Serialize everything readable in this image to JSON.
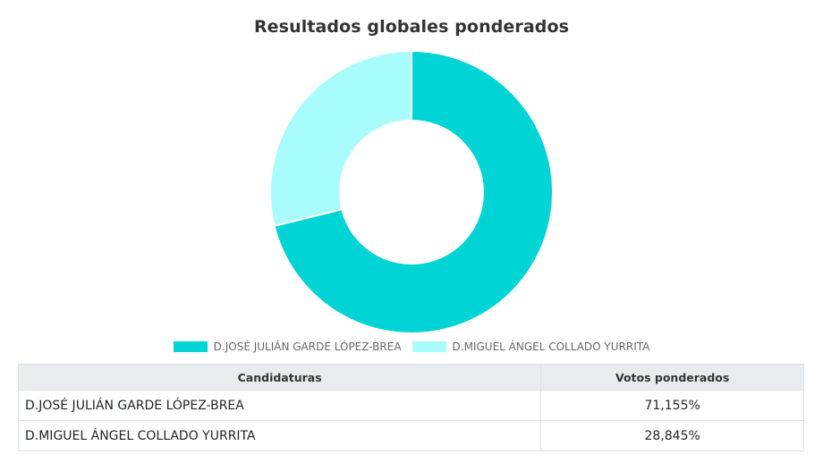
{
  "chart_data": {
    "type": "pie",
    "title": "Resultados globales ponderados",
    "categories": [
      "D.JOSÉ JULIÁN GARDE LÓPEZ-BREA",
      "D.MIGUEL ÁNGEL COLLADO YURRITA"
    ],
    "values": [
      71.155,
      28.845
    ],
    "colors": [
      "#00d4d4",
      "#a8fcfc"
    ],
    "donut": true,
    "legend_position": "bottom"
  },
  "legend": {
    "items": [
      {
        "label": "D.JOSÉ JULIÁN GARDE LÓPEZ-BREA",
        "color": "#00d4d4"
      },
      {
        "label": "D.MIGUEL ÁNGEL COLLADO YURRITA",
        "color": "#a8fcfc"
      }
    ]
  },
  "table": {
    "headers": [
      "Candidaturas",
      "Votos ponderados"
    ],
    "rows": [
      {
        "candidate": "D.JOSÉ JULIÁN GARDE LÓPEZ-BREA",
        "votes": "71,155%"
      },
      {
        "candidate": "D.MIGUEL ÁNGEL COLLADO YURRITA",
        "votes": "28,845%"
      }
    ]
  }
}
